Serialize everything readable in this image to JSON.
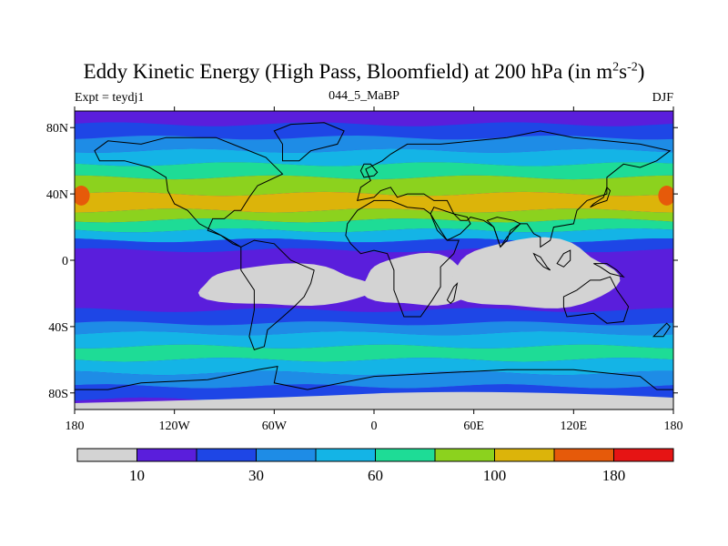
{
  "title": {
    "main": "Eddy Kinetic Energy (High Pass, Bloomfield) at 200 hPa (in m",
    "sup1": "2",
    "mid": "s",
    "sup2": "-2",
    "end": ")"
  },
  "subtitles": {
    "left": "Expt = teydj1",
    "center": "044_5_MaBP",
    "right": "DJF"
  },
  "chart_data": {
    "type": "heatmap",
    "title": "Eddy Kinetic Energy (High Pass, Bloomfield) at 200 hPa (in m2s-2)",
    "projection": "cylindrical equidistant",
    "x_ticks": [
      "180",
      "120W",
      "60W",
      "0",
      "60E",
      "120E",
      "180"
    ],
    "x_tick_values": [
      -180,
      -120,
      -60,
      0,
      60,
      120,
      180
    ],
    "y_ticks": [
      "80N",
      "40N",
      "0",
      "40S",
      "80S"
    ],
    "y_tick_values": [
      80,
      40,
      0,
      -40,
      -80
    ],
    "xlim": [
      -180,
      180
    ],
    "ylim": [
      -90,
      90
    ],
    "colorbar": {
      "labels": [
        "10",
        "30",
        "60",
        "100",
        "180"
      ],
      "label_after_bin": [
        0,
        2,
        4,
        6,
        8
      ],
      "colors": [
        "#d3d3d3",
        "#5a1edc",
        "#1e46e6",
        "#1e8ce6",
        "#14b4e6",
        "#1edc96",
        "#8cd21e",
        "#dcb40a",
        "#e65a0a",
        "#e61414"
      ]
    },
    "bands_by_latitude": [
      {
        "lat": 90,
        "level": 1
      },
      {
        "lat": 82,
        "level": 2
      },
      {
        "lat": 74,
        "level": 3
      },
      {
        "lat": 66,
        "level": 4
      },
      {
        "lat": 58,
        "level": 5
      },
      {
        "lat": 50,
        "level": 6
      },
      {
        "lat": 40,
        "level": 7
      },
      {
        "lat": 30,
        "level": 6
      },
      {
        "lat": 24,
        "level": 5
      },
      {
        "lat": 18,
        "level": 4
      },
      {
        "lat": 12,
        "level": 2
      },
      {
        "lat": 6,
        "level": 1
      },
      {
        "lat": -30,
        "level": 2
      },
      {
        "lat": -38,
        "level": 3
      },
      {
        "lat": -44,
        "level": 4
      },
      {
        "lat": -52,
        "level": 5
      },
      {
        "lat": -60,
        "level": 4
      },
      {
        "lat": -68,
        "level": 3
      },
      {
        "lat": -76,
        "level": 2
      },
      {
        "lat": -84,
        "level": 1
      },
      {
        "lat": -88,
        "level": 0
      }
    ],
    "low_regions": [
      {
        "name": "south-america-low",
        "lon_range": [
          -105,
          -2
        ],
        "lat_range": [
          -28,
          -3
        ]
      },
      {
        "name": "africa-indian-ocean-low",
        "lon_range": [
          -7,
          62
        ],
        "lat_range": [
          -28,
          3
        ]
      },
      {
        "name": "maritime-continent-low",
        "lon_range": [
          45,
          145
        ],
        "lat_range": [
          -30,
          12
        ]
      }
    ],
    "peak_region": {
      "value_range": "140-180",
      "lon": [
        -180,
        -172,
        172,
        180
      ],
      "lat": [
        33,
        45
      ]
    }
  }
}
